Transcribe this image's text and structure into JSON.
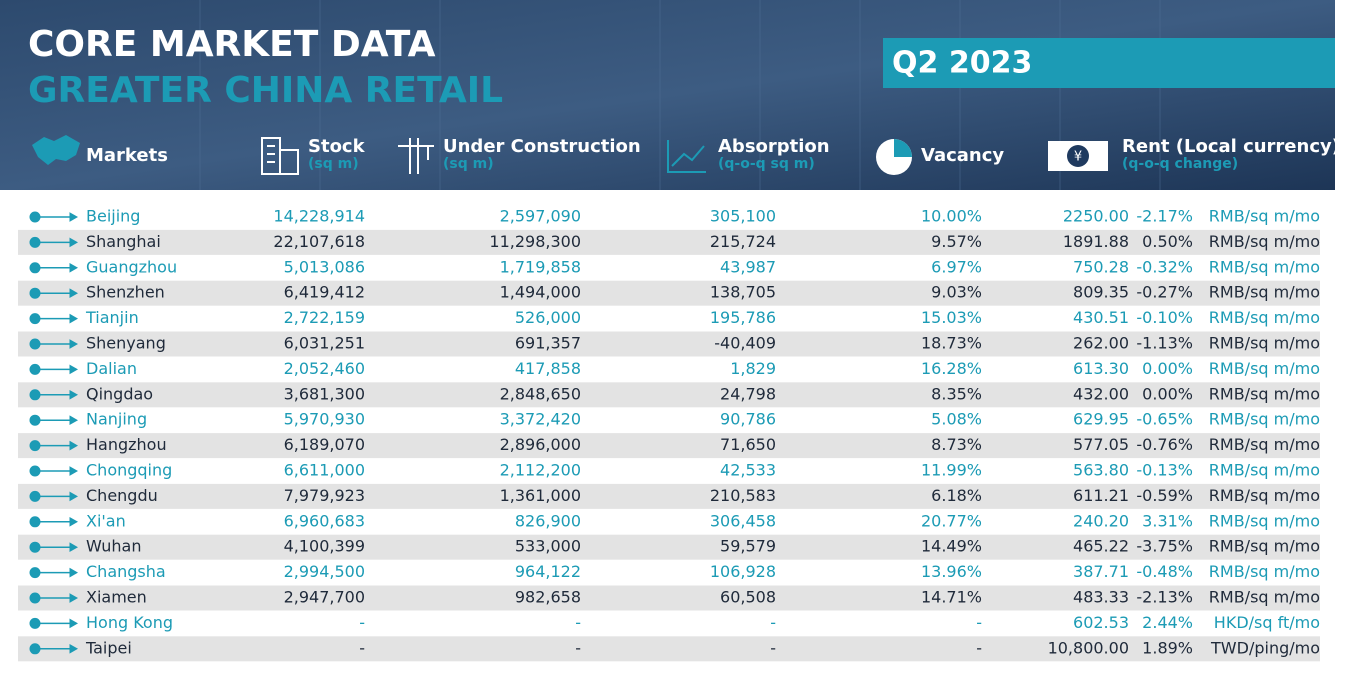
{
  "header": {
    "title": "CORE MARKET DATA",
    "subtitle": "GREATER CHINA RETAIL",
    "period": "Q2 2023"
  },
  "table": {
    "columns": [
      {
        "label": "Markets"
      },
      {
        "label": "Stock",
        "unit": "(sq m)"
      },
      {
        "label": "Under Construction",
        "unit": "(sq m)"
      },
      {
        "label": "Absorption",
        "unit": "(q-o-q sq m)"
      },
      {
        "label": "Vacancy"
      },
      {
        "label": "Rent (Local currency)",
        "unit": "(q-o-q change)"
      }
    ],
    "rows": [
      [
        "Beijing",
        "14,228,914",
        "2,597,090",
        "305,100",
        "10.00%",
        "2250.00",
        "-2.17%",
        "RMB/sq m/mo"
      ],
      [
        "Shanghai",
        "22,107,618",
        "11,298,300",
        "215,724",
        "9.57%",
        "1891.88",
        "0.50%",
        "RMB/sq m/mo"
      ],
      [
        "Guangzhou",
        "5,013,086",
        "1,719,858",
        "43,987",
        "6.97%",
        "750.28",
        "-0.32%",
        "RMB/sq m/mo"
      ],
      [
        "Shenzhen",
        "6,419,412",
        "1,494,000",
        "138,705",
        "9.03%",
        "809.35",
        "-0.27%",
        "RMB/sq m/mo"
      ],
      [
        "Tianjin",
        "2,722,159",
        "526,000",
        "195,786",
        "15.03%",
        "430.51",
        "-0.10%",
        "RMB/sq m/mo"
      ],
      [
        "Shenyang",
        "6,031,251",
        "691,357",
        "-40,409",
        "18.73%",
        "262.00",
        "-1.13%",
        "RMB/sq m/mo"
      ],
      [
        "Dalian",
        "2,052,460",
        "417,858",
        "1,829",
        "16.28%",
        "613.30",
        "0.00%",
        "RMB/sq m/mo"
      ],
      [
        "Qingdao",
        "3,681,300",
        "2,848,650",
        "24,798",
        "8.35%",
        "432.00",
        "0.00%",
        "RMB/sq m/mo"
      ],
      [
        "Nanjing",
        "5,970,930",
        "3,372,420",
        "90,786",
        "5.08%",
        "629.95",
        "-0.65%",
        "RMB/sq m/mo"
      ],
      [
        "Hangzhou",
        "6,189,070",
        "2,896,000",
        "71,650",
        "8.73%",
        "577.05",
        "-0.76%",
        "RMB/sq m/mo"
      ],
      [
        "Chongqing",
        "6,611,000",
        "2,112,200",
        "42,533",
        "11.99%",
        "563.80",
        "-0.13%",
        "RMB/sq m/mo"
      ],
      [
        "Chengdu",
        "7,979,923",
        "1,361,000",
        "210,583",
        "6.18%",
        "611.21",
        "-0.59%",
        "RMB/sq m/mo"
      ],
      [
        "Xi'an",
        "6,960,683",
        "826,900",
        "306,458",
        "20.77%",
        "240.20",
        "3.31%",
        "RMB/sq m/mo"
      ],
      [
        "Wuhan",
        "4,100,399",
        "533,000",
        "59,579",
        "14.49%",
        "465.22",
        "-3.75%",
        "RMB/sq m/mo"
      ],
      [
        "Changsha",
        "2,994,500",
        "964,122",
        "106,928",
        "13.96%",
        "387.71",
        "-0.48%",
        "RMB/sq m/mo"
      ],
      [
        "Xiamen",
        "2,947,700",
        "982,658",
        "60,508",
        "14.71%",
        "483.33",
        "-2.13%",
        "RMB/sq m/mo"
      ],
      [
        "Hong Kong",
        "-",
        "-",
        "-",
        "-",
        "602.53",
        "2.44%",
        "HKD/sq ft/mo"
      ],
      [
        "Taipei",
        "-",
        "-",
        "-",
        "-",
        "10,800.00",
        "1.89%",
        "TWD/ping/mo"
      ]
    ]
  }
}
